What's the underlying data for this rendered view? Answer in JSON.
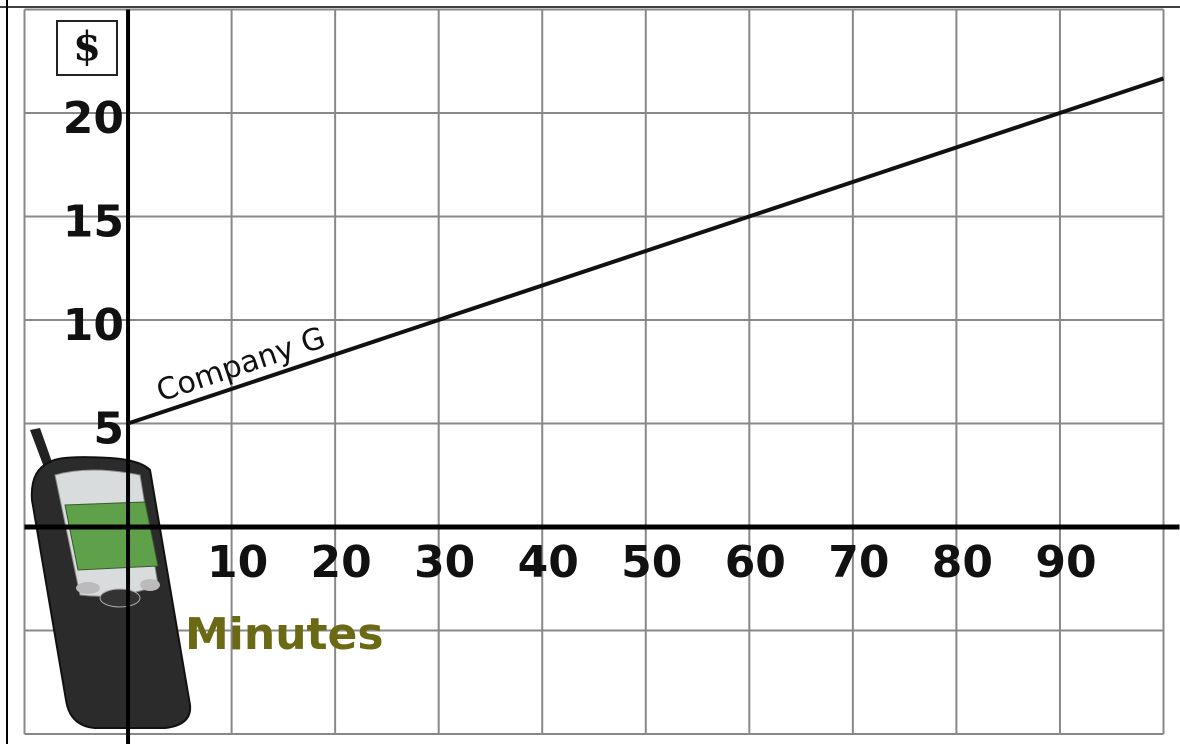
{
  "chart_data": {
    "type": "line",
    "x_label": "Minutes",
    "y_label": "$",
    "series": [
      {
        "name": "Company G",
        "color": "#111111",
        "x": [
          0,
          100
        ],
        "values": [
          5,
          21.67
        ]
      }
    ],
    "xlim": [
      -10,
      100
    ],
    "ylim": [
      -10,
      25
    ],
    "xticks": [
      10,
      20,
      30,
      40,
      50,
      60,
      70,
      80,
      90
    ],
    "yticks": [
      5,
      10,
      15,
      20
    ],
    "grid": true
  }
}
